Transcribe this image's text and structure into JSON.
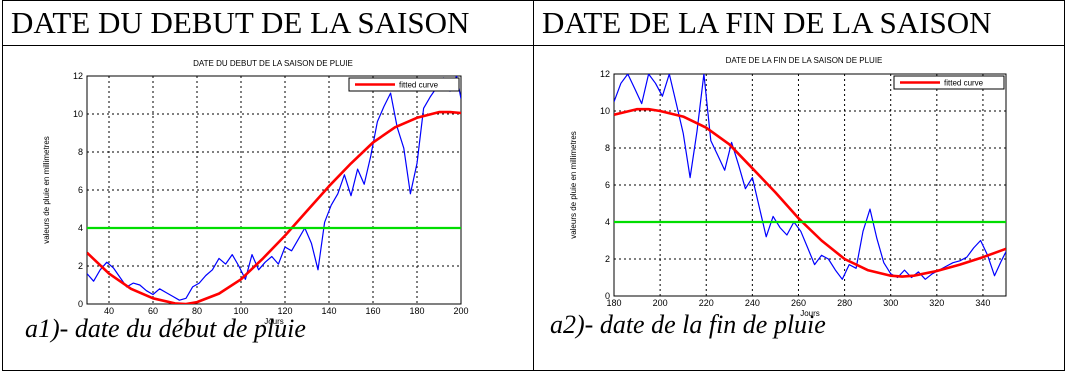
{
  "headers": {
    "left": "DATE DU DEBUT DE LA SAISON",
    "right": "DATE DE LA FIN DE LA SAISON"
  },
  "captions": {
    "left": "a1)- date du début de pluie",
    "right": "a2)- date de la fin de pluie"
  },
  "colors": {
    "observed": "#0000ff",
    "fitted": "#ff0000",
    "threshold": "#00dd00",
    "grid": "#000000"
  },
  "chart_data": [
    {
      "type": "line",
      "title": "DATE DU DEBUT DE LA  SAISON DE PLUIE",
      "xlabel": "Jours",
      "ylabel": "valeurs de pluie  en millimetres",
      "xlim": [
        30,
        200
      ],
      "ylim": [
        0,
        12
      ],
      "xticks": [
        "40",
        "60",
        "80",
        "100",
        "120",
        "140",
        "160",
        "180",
        "200"
      ],
      "yticks": [
        "0",
        "2",
        "4",
        "6",
        "8",
        "10",
        "12"
      ],
      "grid": true,
      "legend_position": "top-right",
      "series": [
        {
          "name": "",
          "kind": "observed",
          "x": [
            30,
            33,
            36,
            39,
            42,
            45,
            48,
            51,
            54,
            57,
            60,
            63,
            66,
            69,
            72,
            75,
            78,
            81,
            84,
            87,
            90,
            93,
            96,
            99,
            102,
            105,
            108,
            111,
            114,
            117,
            120,
            123,
            126,
            129,
            132,
            135,
            138,
            141,
            144,
            147,
            150,
            153,
            156,
            159,
            162,
            165,
            168,
            171,
            174,
            177,
            180,
            183,
            186,
            189,
            192,
            195,
            198,
            200
          ],
          "y": [
            1.6,
            1.2,
            1.8,
            2.2,
            1.9,
            1.4,
            0.9,
            1.1,
            1.0,
            0.7,
            0.5,
            0.8,
            0.6,
            0.4,
            0.2,
            0.3,
            0.9,
            1.1,
            1.5,
            1.8,
            2.4,
            2.1,
            2.6,
            2.0,
            1.3,
            2.6,
            1.8,
            2.2,
            2.5,
            2.1,
            3.0,
            2.8,
            3.4,
            4.0,
            3.2,
            1.8,
            4.3,
            5.2,
            5.8,
            6.8,
            5.7,
            7.1,
            6.3,
            7.8,
            9.6,
            10.4,
            11.1,
            9.3,
            8.2,
            5.8,
            7.4,
            10.3,
            10.9,
            11.4,
            11.9,
            11.2,
            12.0,
            10.8
          ]
        },
        {
          "name": "fitted curve",
          "kind": "fitted",
          "x": [
            30,
            40,
            50,
            60,
            70,
            75,
            80,
            90,
            100,
            110,
            120,
            130,
            140,
            150,
            160,
            170,
            180,
            190,
            195,
            200
          ],
          "y": [
            2.7,
            1.6,
            0.8,
            0.3,
            0.03,
            0.0,
            0.1,
            0.55,
            1.3,
            2.4,
            3.6,
            4.9,
            6.2,
            7.4,
            8.5,
            9.3,
            9.8,
            10.1,
            10.1,
            10.05
          ]
        },
        {
          "name": "",
          "kind": "threshold",
          "x": [
            30,
            200
          ],
          "y": [
            4,
            4
          ]
        }
      ]
    },
    {
      "type": "line",
      "title": "DATE DE LA FIN DE LA SAISON DE PLUIE",
      "xlabel": "Jours",
      "ylabel": "valeurs de pluie en millimetres",
      "xlim": [
        180,
        350
      ],
      "ylim": [
        0,
        12
      ],
      "xticks": [
        "180",
        "200",
        "220",
        "240",
        "260",
        "280",
        "300",
        "320",
        "340"
      ],
      "yticks": [
        "0",
        "2",
        "4",
        "6",
        "8",
        "10",
        "12"
      ],
      "grid": true,
      "legend_position": "top-right",
      "series": [
        {
          "name": "",
          "kind": "observed",
          "x": [
            180,
            183,
            186,
            189,
            192,
            195,
            198,
            201,
            204,
            207,
            210,
            213,
            216,
            219,
            222,
            225,
            228,
            231,
            234,
            237,
            240,
            243,
            246,
            249,
            252,
            255,
            258,
            261,
            264,
            267,
            270,
            273,
            276,
            279,
            282,
            285,
            288,
            291,
            294,
            297,
            300,
            303,
            306,
            309,
            312,
            315,
            318,
            321,
            324,
            327,
            330,
            333,
            336,
            339,
            342,
            345,
            348,
            350
          ],
          "y": [
            10.5,
            11.5,
            12.0,
            11.2,
            10.4,
            12.0,
            11.5,
            10.8,
            12.0,
            10.4,
            8.8,
            6.4,
            8.9,
            12.0,
            8.4,
            7.6,
            6.8,
            8.3,
            7.1,
            5.8,
            6.4,
            4.8,
            3.2,
            4.3,
            3.7,
            3.3,
            4.0,
            3.5,
            2.6,
            1.7,
            2.2,
            2.0,
            1.4,
            0.9,
            1.7,
            1.5,
            3.5,
            4.7,
            3.1,
            1.8,
            1.2,
            1.0,
            1.4,
            1.0,
            1.3,
            0.9,
            1.2,
            1.4,
            1.6,
            1.8,
            1.9,
            2.1,
            2.6,
            3.0,
            2.2,
            1.1,
            1.9,
            2.4
          ]
        },
        {
          "name": "fitted curve",
          "kind": "fitted",
          "x": [
            180,
            190,
            195,
            200,
            210,
            220,
            230,
            240,
            250,
            260,
            270,
            280,
            290,
            300,
            305,
            310,
            320,
            330,
            340,
            350
          ],
          "y": [
            9.8,
            10.1,
            10.1,
            10.0,
            9.7,
            9.1,
            8.2,
            6.9,
            5.6,
            4.2,
            3.0,
            2.0,
            1.4,
            1.1,
            1.05,
            1.1,
            1.35,
            1.7,
            2.1,
            2.55
          ]
        },
        {
          "name": "",
          "kind": "threshold",
          "x": [
            180,
            350
          ],
          "y": [
            4,
            4
          ]
        }
      ]
    }
  ]
}
